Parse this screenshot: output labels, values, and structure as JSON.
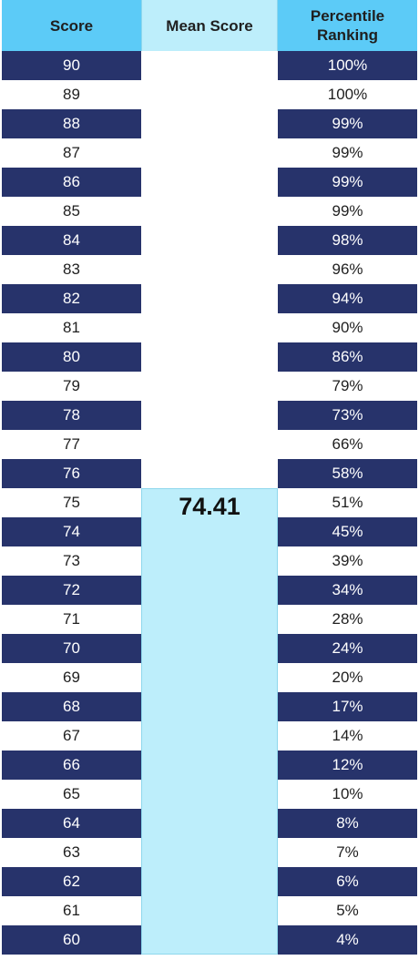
{
  "headers": {
    "score": "Score",
    "mean": "Mean Score",
    "percentile_line1": "Percentile",
    "percentile_line2": "Ranking"
  },
  "mean_value": "74.41",
  "rows": [
    {
      "score": "90",
      "pct": "100%"
    },
    {
      "score": "89",
      "pct": "100%"
    },
    {
      "score": "88",
      "pct": "99%"
    },
    {
      "score": "87",
      "pct": "99%"
    },
    {
      "score": "86",
      "pct": "99%"
    },
    {
      "score": "85",
      "pct": "99%"
    },
    {
      "score": "84",
      "pct": "98%"
    },
    {
      "score": "83",
      "pct": "96%"
    },
    {
      "score": "82",
      "pct": "94%"
    },
    {
      "score": "81",
      "pct": "90%"
    },
    {
      "score": "80",
      "pct": "86%"
    },
    {
      "score": "79",
      "pct": "79%"
    },
    {
      "score": "78",
      "pct": "73%"
    },
    {
      "score": "77",
      "pct": "66%"
    },
    {
      "score": "76",
      "pct": "58%"
    },
    {
      "score": "75",
      "pct": "51%"
    },
    {
      "score": "74",
      "pct": "45%"
    },
    {
      "score": "73",
      "pct": "39%"
    },
    {
      "score": "72",
      "pct": "34%"
    },
    {
      "score": "71",
      "pct": "28%"
    },
    {
      "score": "70",
      "pct": "24%"
    },
    {
      "score": "69",
      "pct": "20%"
    },
    {
      "score": "68",
      "pct": "17%"
    },
    {
      "score": "67",
      "pct": "14%"
    },
    {
      "score": "66",
      "pct": "12%"
    },
    {
      "score": "65",
      "pct": "10%"
    },
    {
      "score": "64",
      "pct": "8%"
    },
    {
      "score": "63",
      "pct": "7%"
    },
    {
      "score": "62",
      "pct": "6%"
    },
    {
      "score": "61",
      "pct": "5%"
    },
    {
      "score": "60",
      "pct": "4%"
    }
  ],
  "colors": {
    "header_cyan": "#5ccbf7",
    "header_light": "#bdeefb",
    "dark_row": "#27336b",
    "light_row": "#ffffff"
  }
}
